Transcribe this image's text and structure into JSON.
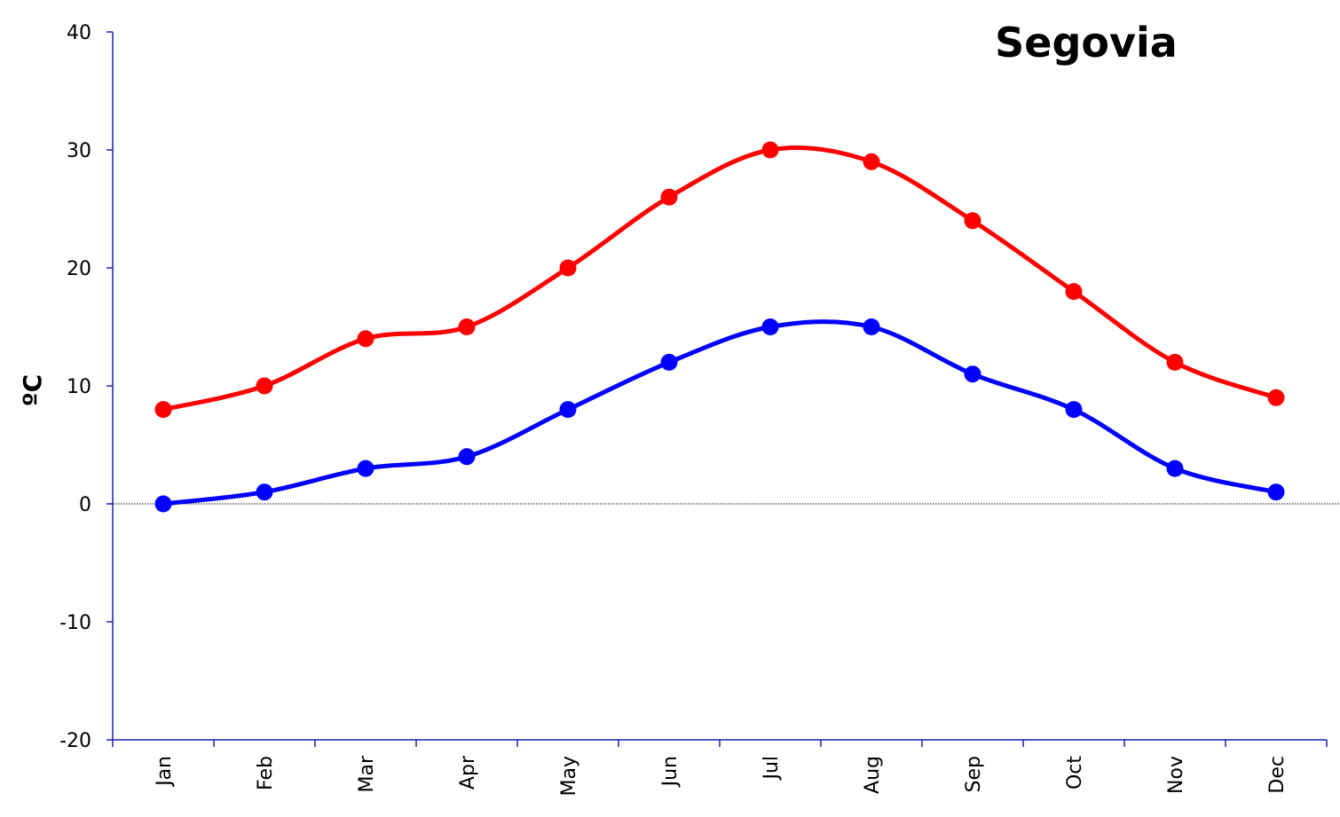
{
  "chart_data": {
    "type": "line",
    "title": "Segovia",
    "xlabel": "",
    "ylabel": "ºC",
    "ylim": [
      -20,
      40
    ],
    "yticks": [
      -20,
      -10,
      0,
      10,
      20,
      30,
      40
    ],
    "categories": [
      "Jan",
      "Feb",
      "Mar",
      "Apr",
      "May",
      "Jun",
      "Jul",
      "Aug",
      "Sep",
      "Oct",
      "Nov",
      "Dec"
    ],
    "series": [
      {
        "values": [
          8,
          10,
          14,
          15,
          20,
          26,
          30,
          29,
          24,
          18,
          12,
          9
        ],
        "color": "#ff0000"
      },
      {
        "values": [
          0,
          1,
          3,
          4,
          8,
          12,
          15,
          15,
          11,
          8,
          3,
          1
        ],
        "color": "#0000ff"
      }
    ],
    "zero_line": true,
    "axis_color": "#1f1fb0",
    "grid": false,
    "smooth": true
  }
}
